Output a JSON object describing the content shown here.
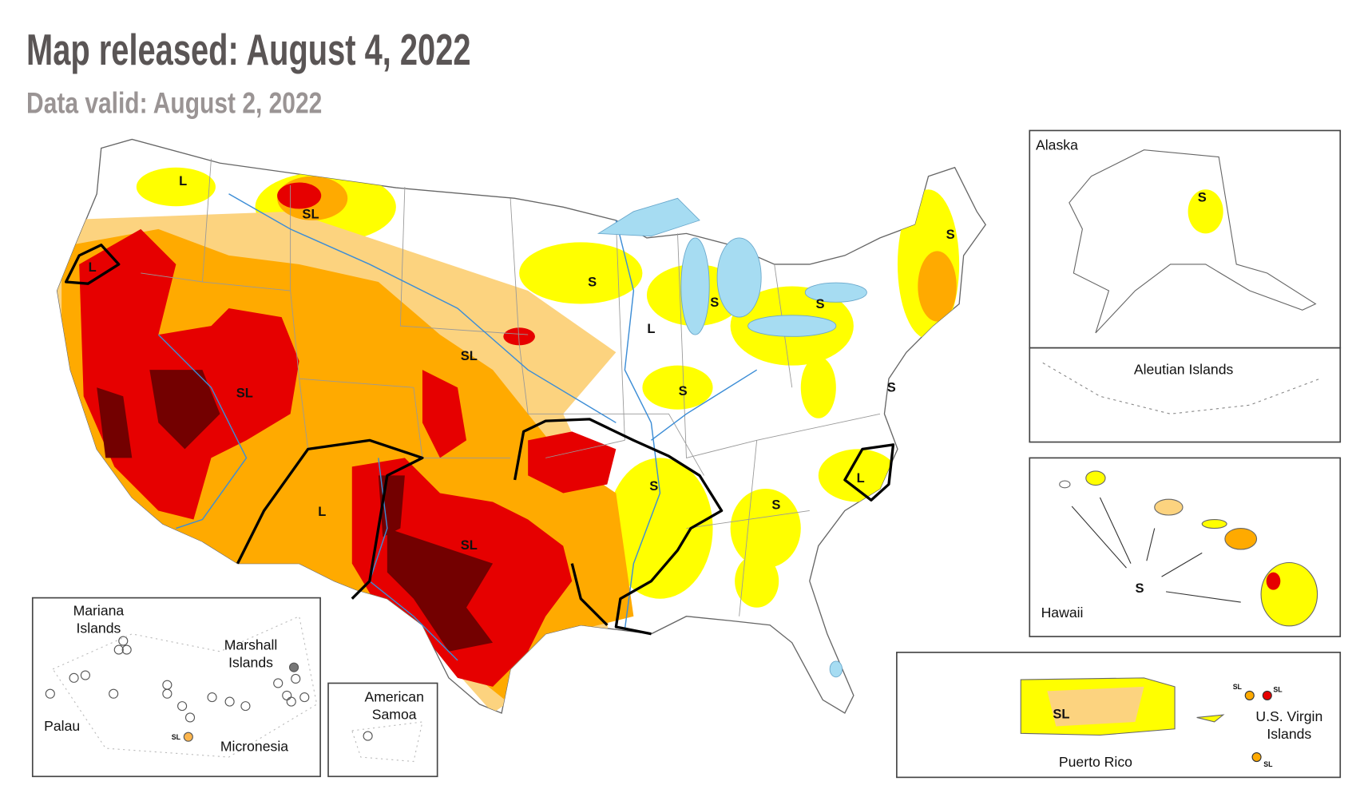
{
  "header": {
    "title": "Map released: August 4, 2022",
    "subtitle": "Data valid: August 2, 2022"
  },
  "map": {
    "labels": [
      "L",
      "SL",
      "L",
      "S",
      "S",
      "S",
      "S",
      "L",
      "SL",
      "SL",
      "S",
      "S",
      "S",
      "L",
      "S",
      "L",
      "SL"
    ]
  },
  "insets": {
    "alaska": {
      "name": "Alaska",
      "labels": [
        "S"
      ]
    },
    "aleutian": {
      "name": "Aleutian Islands"
    },
    "hawaii": {
      "name": "Hawaii",
      "labels": [
        "S"
      ]
    },
    "puerto_rico": {
      "name": "Puerto Rico",
      "labels": [
        "SL"
      ]
    },
    "virgin_islands": {
      "name": [
        "U.S. Virgin",
        "Islands"
      ],
      "labels": [
        "SL",
        "SL",
        "SL"
      ]
    },
    "mariana": {
      "name": [
        "Mariana",
        "Islands"
      ]
    },
    "marshall": {
      "name": [
        "Marshall",
        "Islands"
      ]
    },
    "palau": {
      "name": "Palau"
    },
    "micronesia": {
      "name": "Micronesia",
      "labels": [
        "SL"
      ]
    },
    "samoa": {
      "name": [
        "American",
        "Samoa"
      ]
    }
  }
}
